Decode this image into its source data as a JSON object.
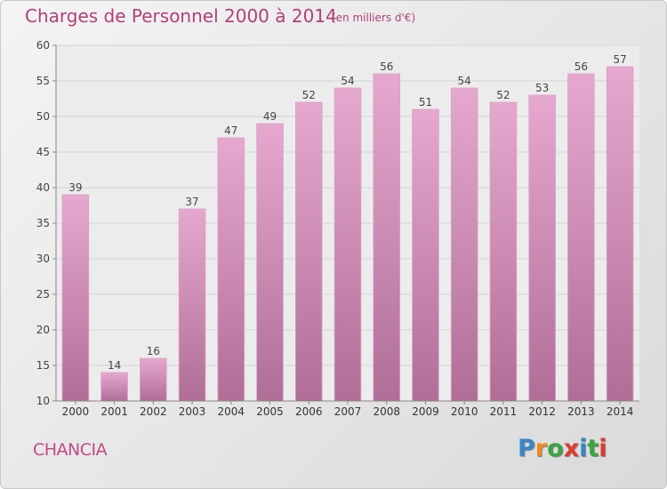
{
  "title": "Charges de Personnel 2000 à 2014",
  "subtitle": "(en milliers d'€)",
  "location": "CHANCIA",
  "logo": {
    "letters": [
      "P",
      "r",
      "o",
      "x",
      "i",
      "t",
      "i"
    ],
    "colors": [
      "#3a86c8",
      "#f08a1c",
      "#3aa640",
      "#e03a2e",
      "#3a86c8",
      "#3aa640",
      "#e03a2e"
    ]
  },
  "colors": {
    "bar_top": "#e6a8cf",
    "bar_bottom": "#b06e97",
    "title": "#b0407a"
  },
  "chart_data": {
    "type": "bar",
    "categories": [
      "2000",
      "2001",
      "2002",
      "2003",
      "2004",
      "2005",
      "2006",
      "2007",
      "2008",
      "2009",
      "2010",
      "2011",
      "2012",
      "2013",
      "2014"
    ],
    "values": [
      39,
      14,
      16,
      37,
      47,
      49,
      52,
      54,
      56,
      51,
      54,
      52,
      53,
      56,
      57
    ],
    "ylim": [
      10,
      60
    ],
    "yticks": [
      10,
      15,
      20,
      25,
      30,
      35,
      40,
      45,
      50,
      55,
      60
    ],
    "grid": true,
    "xlabel": "",
    "ylabel": ""
  }
}
